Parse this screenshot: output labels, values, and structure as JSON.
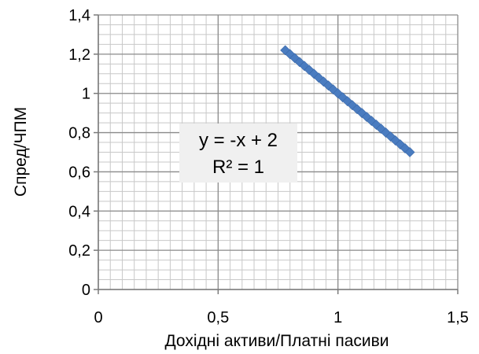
{
  "chart_data": {
    "type": "scatter",
    "title": "",
    "xlabel": "Дохідні активи/Платні пасиви",
    "ylabel": "Спред/ЧПМ",
    "xlim": [
      0,
      1.5
    ],
    "ylim": [
      0,
      1.4
    ],
    "x_ticks": [
      "0",
      "0,5",
      "1",
      "1,5"
    ],
    "y_ticks": [
      "0",
      "0,2",
      "0,4",
      "0,6",
      "0,8",
      "1",
      "1,2",
      "1,4"
    ],
    "grid": true,
    "trendline": {
      "equation": "y = -x + 2",
      "r_squared": "R² = 1"
    },
    "series": [
      {
        "color": "#4a7cc0",
        "marker": "diamond",
        "x": [
          0.78,
          0.8,
          0.82,
          0.84,
          0.86,
          0.88,
          0.9,
          0.92,
          0.94,
          0.96,
          0.98,
          1.0,
          1.02,
          1.04,
          1.06,
          1.08,
          1.1,
          1.12,
          1.14,
          1.16,
          1.18,
          1.2,
          1.22,
          1.24,
          1.26,
          1.28,
          1.3
        ],
        "y": [
          1.22,
          1.2,
          1.18,
          1.16,
          1.14,
          1.12,
          1.1,
          1.08,
          1.06,
          1.04,
          1.02,
          1.0,
          0.98,
          0.96,
          0.94,
          0.92,
          0.9,
          0.88,
          0.86,
          0.84,
          0.82,
          0.8,
          0.78,
          0.76,
          0.74,
          0.72,
          0.7
        ]
      }
    ]
  }
}
